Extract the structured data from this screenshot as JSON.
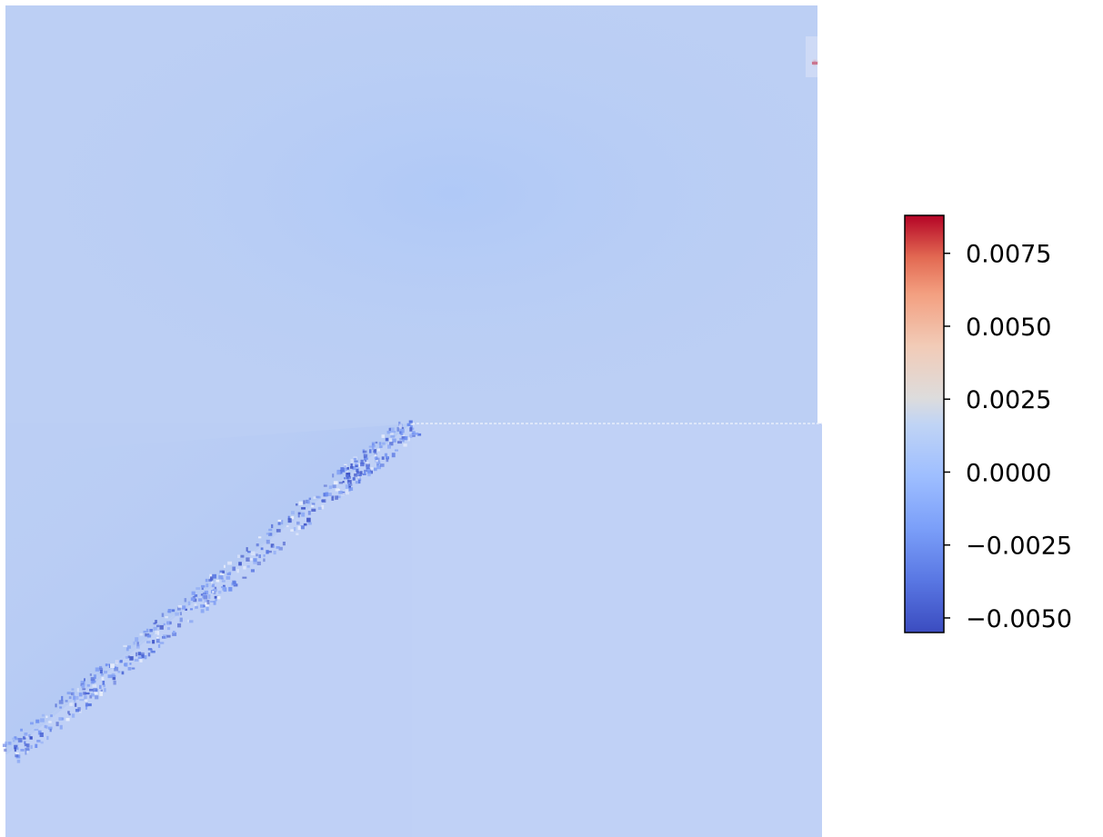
{
  "chart_data": {
    "type": "heatmap",
    "title": "",
    "xlabel": "",
    "ylabel": "",
    "axes_visible": false,
    "colormap": "coolwarm",
    "colorbar": {
      "placement": "right",
      "vmin": -0.0055,
      "vmax": 0.0088,
      "ticks": [
        {
          "value": -0.005,
          "label": "−0.0050"
        },
        {
          "value": -0.0025,
          "label": "−0.0025"
        },
        {
          "value": 0.0,
          "label": "0.0000"
        },
        {
          "value": 0.0025,
          "label": "0.0025"
        },
        {
          "value": 0.005,
          "label": "0.0050"
        },
        {
          "value": 0.0075,
          "label": "0.0075"
        }
      ]
    },
    "field_description_values": {
      "background_value": -0.0008,
      "diagonal_band_min": -0.0052,
      "hotspot_max": 0.0088
    }
  },
  "colors": {
    "background": "#bccff4",
    "colorbar_top": "#b40426",
    "colorbar_mid": "#dddddd",
    "colorbar_bottom": "#3b4cc0"
  }
}
